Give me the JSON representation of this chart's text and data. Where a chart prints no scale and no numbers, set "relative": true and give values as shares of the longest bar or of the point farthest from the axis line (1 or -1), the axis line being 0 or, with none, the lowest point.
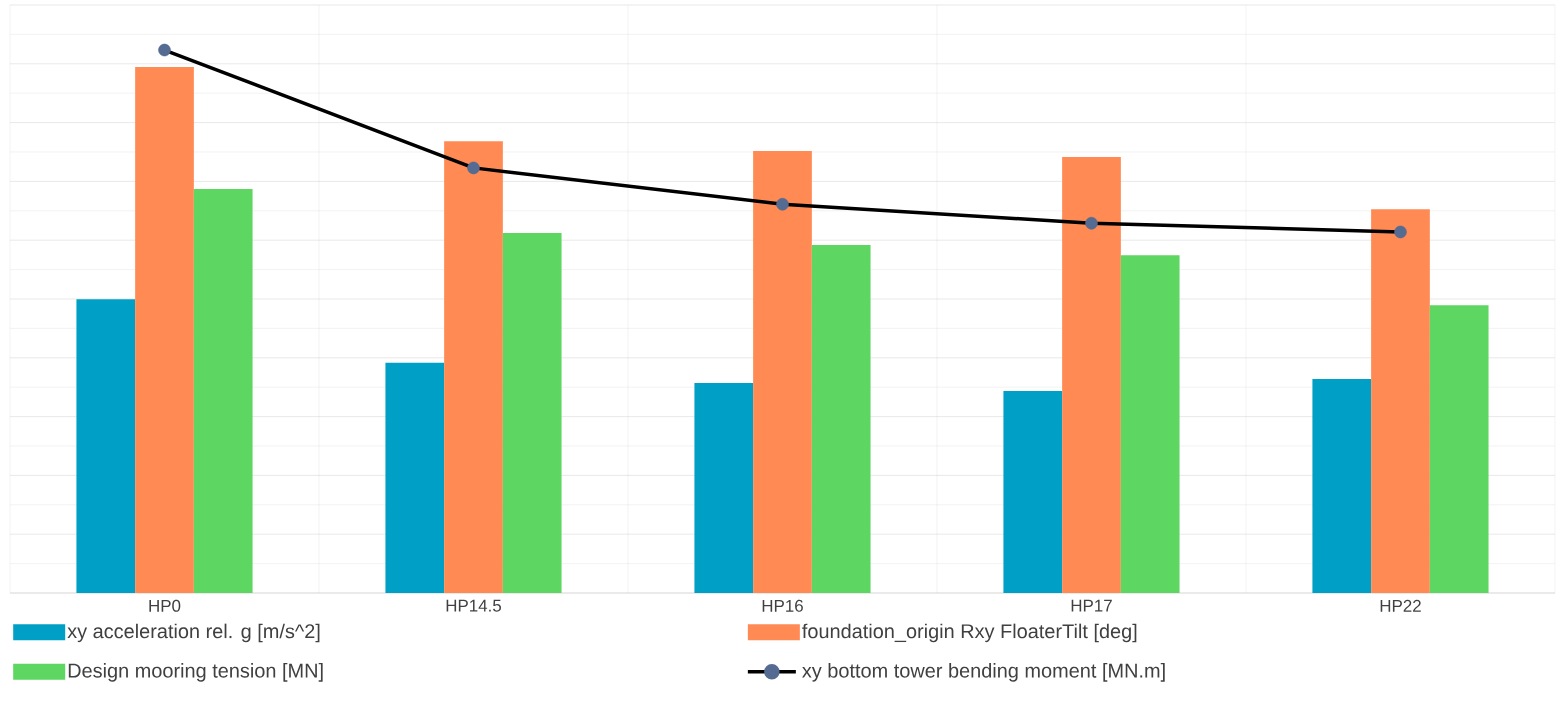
{
  "chart_data": {
    "type": "bar",
    "relative": true,
    "grid": true,
    "legend": "bottom",
    "categories": [
      "HP0",
      "HP14.5",
      "HP16",
      "HP17",
      "HP22"
    ],
    "series": [
      {
        "name": "xy acceleration rel. g [m/s^2]",
        "color": "#00a0c6",
        "values": [
          0.541,
          0.424,
          0.387,
          0.372,
          0.394
        ]
      },
      {
        "name": "foundation_origin Rxy FloaterTilt [deg]",
        "color": "#ff8a54",
        "values": [
          0.969,
          0.832,
          0.814,
          0.803,
          0.707
        ]
      },
      {
        "name": "Design mooring tension [MN]",
        "color": "#5ed662",
        "values": [
          0.744,
          0.663,
          0.641,
          0.622,
          0.53
        ]
      },
      {
        "name": "xy bottom tower bending moment [MN.m]",
        "type": "line",
        "marker": "circle",
        "color": "#000000",
        "values": [
          1.0,
          0.783,
          0.716,
          0.681,
          0.665
        ]
      }
    ]
  }
}
